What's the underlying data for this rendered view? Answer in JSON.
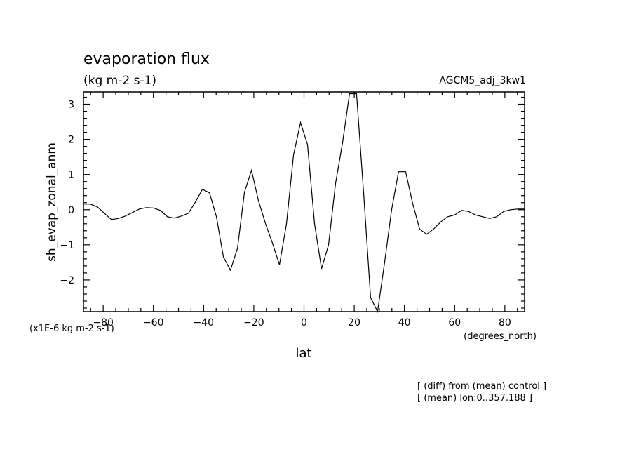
{
  "chart_data": {
    "type": "line",
    "title": "evaporation flux",
    "subtitle": "(kg m-2 s-1)",
    "run_label": "AGCM5_adj_3kw1",
    "xlabel": "lat",
    "xunits": "(degrees_north)",
    "ylabel": "sh_evap_zonal_anm",
    "yunits": "(x1E-6 kg m-2 s-1)",
    "xlim": [
      -87.86,
      87.86
    ],
    "ylim": [
      -2.9,
      3.35
    ],
    "xticks": [
      -80,
      -60,
      -40,
      -20,
      0,
      20,
      40,
      60,
      80
    ],
    "yticks": [
      -2,
      -1,
      0,
      1,
      2,
      3
    ],
    "grid": false,
    "notes": [
      "[ (diff) from (mean) control ]",
      "[ (mean) lon:0..357.188 ]"
    ],
    "x": [
      -87.86,
      -85.1,
      -82.31,
      -79.53,
      -76.74,
      -73.95,
      -71.16,
      -68.37,
      -65.58,
      -62.79,
      -60.0,
      -57.21,
      -54.42,
      -51.63,
      -48.84,
      -46.05,
      -43.26,
      -40.47,
      -37.67,
      -34.88,
      -32.09,
      -29.3,
      -26.51,
      -23.72,
      -20.93,
      -18.14,
      -15.35,
      -12.56,
      -9.77,
      -6.98,
      -4.19,
      -1.4,
      1.4,
      4.19,
      6.98,
      9.77,
      12.56,
      15.35,
      18.14,
      20.93,
      23.72,
      26.51,
      29.3,
      32.09,
      34.88,
      37.67,
      40.47,
      43.26,
      46.05,
      48.84,
      51.63,
      54.42,
      57.21,
      60.0,
      62.79,
      65.58,
      68.37,
      71.16,
      73.95,
      76.74,
      79.53,
      82.31,
      85.1,
      87.86
    ],
    "values": [
      0.16,
      0.16,
      0.08,
      -0.1,
      -0.28,
      -0.25,
      -0.18,
      -0.08,
      0.02,
      0.06,
      0.05,
      -0.02,
      -0.2,
      -0.24,
      -0.18,
      -0.1,
      0.22,
      0.58,
      0.48,
      -0.2,
      -1.35,
      -1.72,
      -1.1,
      0.5,
      1.12,
      0.25,
      -0.4,
      -0.95,
      -1.57,
      -0.4,
      1.55,
      2.48,
      1.85,
      -0.4,
      -1.68,
      -1.0,
      0.75,
      1.9,
      3.3,
      3.3,
      0.5,
      -2.5,
      -2.9,
      -1.5,
      0.0,
      1.08,
      1.08,
      0.18,
      -0.55,
      -0.7,
      -0.55,
      -0.35,
      -0.2,
      -0.15,
      -0.02,
      -0.05,
      -0.15,
      -0.2,
      -0.25,
      -0.2,
      -0.05,
      0.0,
      0.02,
      0.02
    ]
  }
}
